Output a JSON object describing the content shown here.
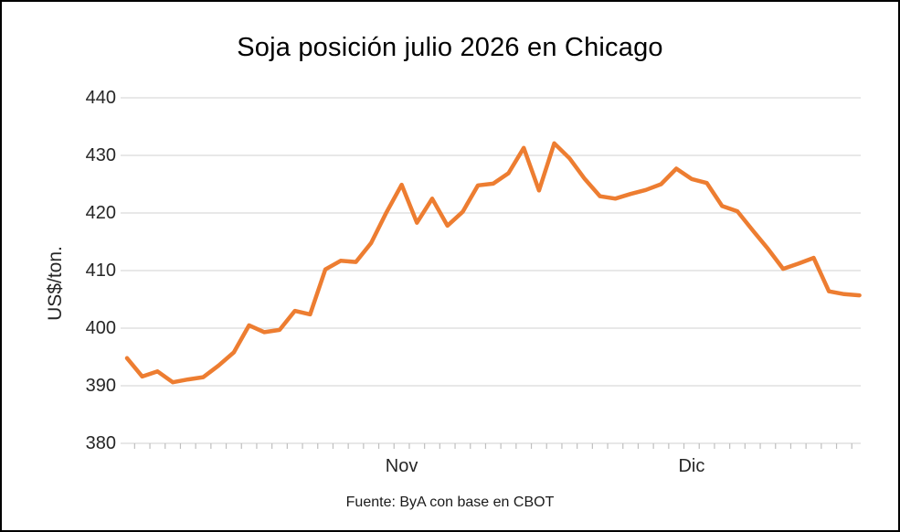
{
  "title": "Soja posición julio 2026 en Chicago",
  "footer": {
    "source": "Fuente: ByA con base en CBOT"
  },
  "colors": {
    "line": "#ED7D31",
    "gridline": "#D9D9D9",
    "tick": "#BFBFBF",
    "axis_text": "#262626",
    "border": "#000000",
    "background": "#FFFFFF"
  },
  "chart_data": {
    "type": "line",
    "title": "Soja posición julio 2026 en Chicago",
    "xlabel": "",
    "ylabel": "US$/ton.",
    "ylim": [
      380,
      440
    ],
    "yticks": [
      380,
      390,
      400,
      410,
      420,
      430,
      440
    ],
    "grid": true,
    "legend": false,
    "x_month_labels": [
      {
        "label": "Nov",
        "index": 18
      },
      {
        "label": "Dic",
        "index": 37
      }
    ],
    "series": [
      {
        "name": "Soja posición julio 2026",
        "color": "#ED7D31",
        "values": [
          394.8,
          391.6,
          392.5,
          390.6,
          391.1,
          391.5,
          393.5,
          395.8,
          400.5,
          399.3,
          399.7,
          403.0,
          402.4,
          410.2,
          411.7,
          411.5,
          414.8,
          420.1,
          424.9,
          418.3,
          422.5,
          417.8,
          420.2,
          424.8,
          425.1,
          426.9,
          431.3,
          423.9,
          432.1,
          429.5,
          425.9,
          422.9,
          422.5,
          423.3,
          424.0,
          425.0,
          427.7,
          425.9,
          425.2,
          421.2,
          420.3,
          417.0,
          413.8,
          410.3,
          411.2,
          412.2,
          406.4,
          405.9,
          405.7
        ]
      }
    ]
  }
}
